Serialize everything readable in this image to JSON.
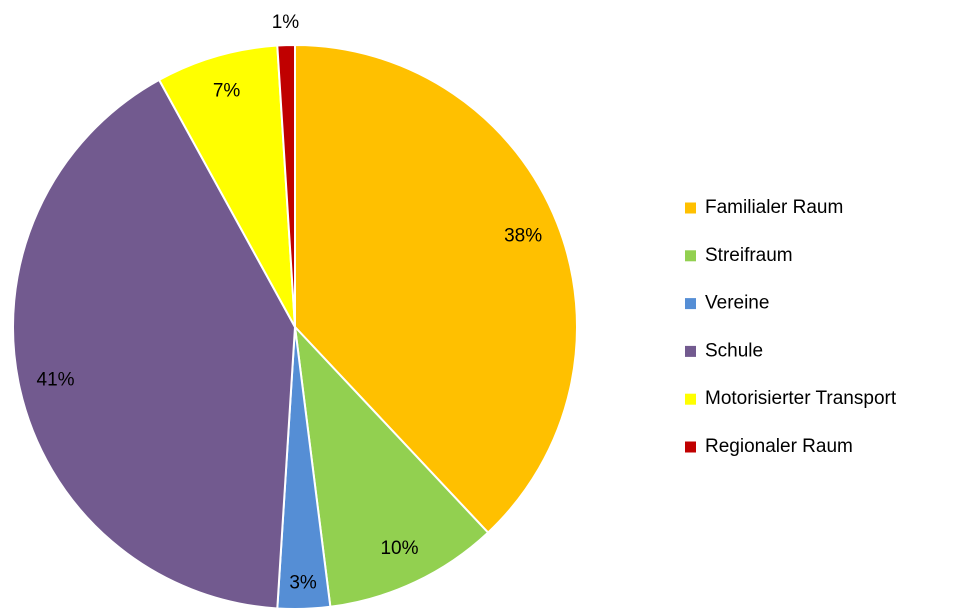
{
  "chart_data": {
    "type": "pie",
    "categories": [
      "Familialer Raum",
      "Streifraum",
      "Vereine",
      "Schule",
      "Motorisierter Transport",
      "Regionaler Raum"
    ],
    "values": [
      38,
      10,
      3,
      41,
      7,
      1
    ],
    "value_labels": [
      "38%",
      "10%",
      "3%",
      "41%",
      "7%",
      "1%"
    ],
    "colors": [
      "#ffc000",
      "#92d050",
      "#558ed5",
      "#725a8f",
      "#ffff00",
      "#c00000"
    ],
    "legend": "right"
  }
}
